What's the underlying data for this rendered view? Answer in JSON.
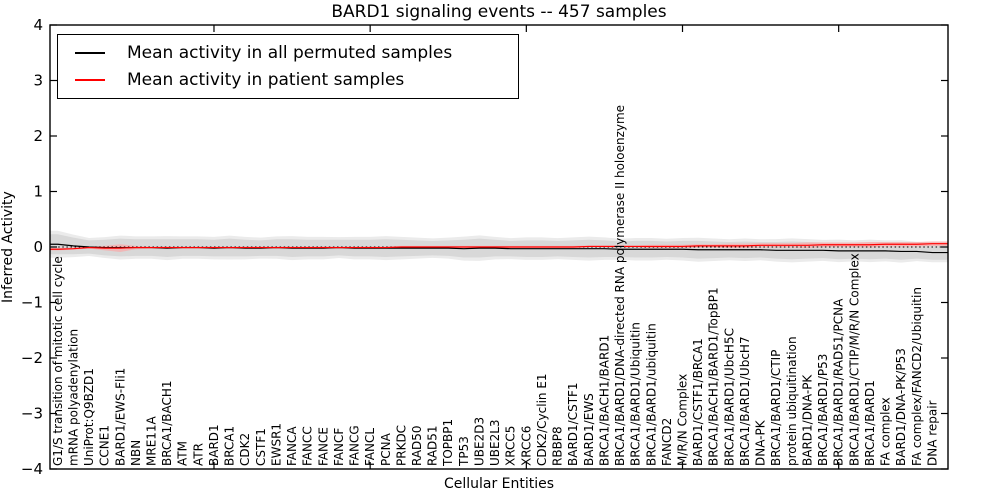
{
  "chart_data": {
    "type": "line",
    "title": "BARD1 signaling events -- 457 samples",
    "xlabel": "Cellular Entities",
    "ylabel": "Inferred Activity",
    "ylim": [
      -4,
      4
    ],
    "yticks": [
      4,
      3,
      2,
      1,
      0,
      -1,
      -2,
      -3,
      -4
    ],
    "ytick_labels": [
      "4",
      "3",
      "2",
      "1",
      "0",
      "−1",
      "−2",
      "−3",
      "−4"
    ],
    "x_major_tick_indices": [
      10,
      20,
      30,
      40,
      50
    ],
    "grid": false,
    "legend_position": "upper-left",
    "zero_reference_line": {
      "y": 0,
      "style": "dotted",
      "color": "#000000"
    },
    "categories": [
      "G1/S transition of mitotic cell cycle",
      "mRNA polyadenylation",
      "UniProt:Q9BZD1",
      "CCNE1",
      "BARD1/EWS-Fli1",
      "NBN",
      "MRE11A",
      "BRCA1/BACH1",
      "ATM",
      "ATR",
      "BARD1",
      "BRCA1",
      "CDK2",
      "CSTF1",
      "EWSR1",
      "FANCA",
      "FANCC",
      "FANCE",
      "FANCF",
      "FANCG",
      "FANCL",
      "PCNA",
      "PRKDC",
      "RAD50",
      "RAD51",
      "TOPBP1",
      "TP53",
      "UBE2D3",
      "UBE2L3",
      "XRCC5",
      "XRCC6",
      "CDK2/Cyclin E1",
      "RBBP8",
      "BARD1/CSTF1",
      "BARD1/EWS",
      "BRCA1/BACH1/BARD1",
      "BRCA1/BARD1/DNA-directed RNA polymerase II holoenzyme",
      "BRCA1/BARD1/Ubiquitin",
      "BRCA1/BARD1/ubiquitin",
      "FANCD2",
      "M/R/N Complex",
      "BARD1/CSTF1/BRCA1",
      "BRCA1/BACH1/BARD1/TopBP1",
      "BRCA1/BARD1/UbcH5C",
      "BRCA1/BARD1/UbcH7",
      "DNA-PK",
      "BRCA1/BARD1/CTIP",
      "protein ubiquitination",
      "BARD1/DNA-PK",
      "BRCA1/BARD1/P53",
      "BRCA1/BARD1/RAD51/PCNA",
      "BRCA1/BARD1/CTIP/M/R/N Complex",
      "BRCA1/BARD1",
      "FA complex",
      "BARD1/DNA-PK/P53",
      "FA complex/FANCD2/Ubiquitin",
      "DNA repair"
    ],
    "series": [
      {
        "name": "Mean activity in all permuted samples",
        "color": "#000000",
        "band_color": "#d8d8d8",
        "band_outer_color": "#ebebeb",
        "values": [
          0.05,
          0.02,
          0.0,
          -0.01,
          -0.01,
          -0.01,
          -0.01,
          -0.02,
          -0.01,
          -0.01,
          -0.02,
          -0.01,
          -0.02,
          -0.02,
          -0.01,
          -0.02,
          -0.02,
          -0.02,
          -0.01,
          -0.02,
          -0.02,
          -0.02,
          -0.02,
          -0.02,
          -0.02,
          -0.02,
          -0.03,
          -0.02,
          -0.02,
          -0.03,
          -0.03,
          -0.03,
          -0.03,
          -0.03,
          -0.03,
          -0.03,
          -0.04,
          -0.04,
          -0.04,
          -0.04,
          -0.04,
          -0.05,
          -0.05,
          -0.05,
          -0.05,
          -0.05,
          -0.06,
          -0.06,
          -0.06,
          -0.06,
          -0.07,
          -0.07,
          -0.07,
          -0.07,
          -0.08,
          -0.08,
          -0.1
        ],
        "band_halfwidth": [
          0.18,
          0.15,
          0.12,
          0.14,
          0.16,
          0.15,
          0.15,
          0.16,
          0.15,
          0.15,
          0.15,
          0.16,
          0.15,
          0.14,
          0.15,
          0.16,
          0.15,
          0.15,
          0.14,
          0.15,
          0.15,
          0.16,
          0.15,
          0.14,
          0.13,
          0.14,
          0.16,
          0.17,
          0.15,
          0.14,
          0.15,
          0.15,
          0.14,
          0.15,
          0.16,
          0.15,
          0.14,
          0.15,
          0.15,
          0.14,
          0.15,
          0.16,
          0.15,
          0.14,
          0.15,
          0.14,
          0.15,
          0.16,
          0.15,
          0.14,
          0.15,
          0.14,
          0.15,
          0.14,
          0.15,
          0.13,
          0.13
        ]
      },
      {
        "name": "Mean activity in patient samples",
        "color": "#ff0000",
        "band_color": "#f5b2b2",
        "values": [
          -0.04,
          -0.03,
          -0.01,
          -0.02,
          -0.02,
          -0.01,
          -0.01,
          -0.01,
          -0.01,
          -0.01,
          -0.01,
          -0.01,
          -0.01,
          -0.01,
          -0.01,
          -0.01,
          -0.01,
          -0.01,
          -0.01,
          -0.01,
          -0.01,
          -0.01,
          0.0,
          0.0,
          0.0,
          0.0,
          0.0,
          0.0,
          0.0,
          0.0,
          0.0,
          0.0,
          0.0,
          0.0,
          0.01,
          0.01,
          0.01,
          0.01,
          0.01,
          0.01,
          0.01,
          0.02,
          0.02,
          0.02,
          0.02,
          0.03,
          0.03,
          0.03,
          0.03,
          0.04,
          0.04,
          0.04,
          0.04,
          0.05,
          0.05,
          0.05,
          0.06
        ],
        "band_halfwidth": [
          0.02,
          0.02,
          0.02,
          0.04,
          0.07,
          0.03,
          0.02,
          0.02,
          0.02,
          0.02,
          0.02,
          0.02,
          0.02,
          0.02,
          0.02,
          0.02,
          0.02,
          0.02,
          0.02,
          0.02,
          0.02,
          0.02,
          0.02,
          0.02,
          0.02,
          0.02,
          0.02,
          0.02,
          0.02,
          0.02,
          0.02,
          0.02,
          0.02,
          0.02,
          0.02,
          0.02,
          0.02,
          0.02,
          0.03,
          0.03,
          0.03,
          0.03,
          0.03,
          0.04,
          0.04,
          0.04,
          0.04,
          0.04,
          0.05,
          0.04,
          0.04,
          0.04,
          0.05,
          0.04,
          0.04,
          0.04,
          0.04
        ]
      }
    ]
  }
}
